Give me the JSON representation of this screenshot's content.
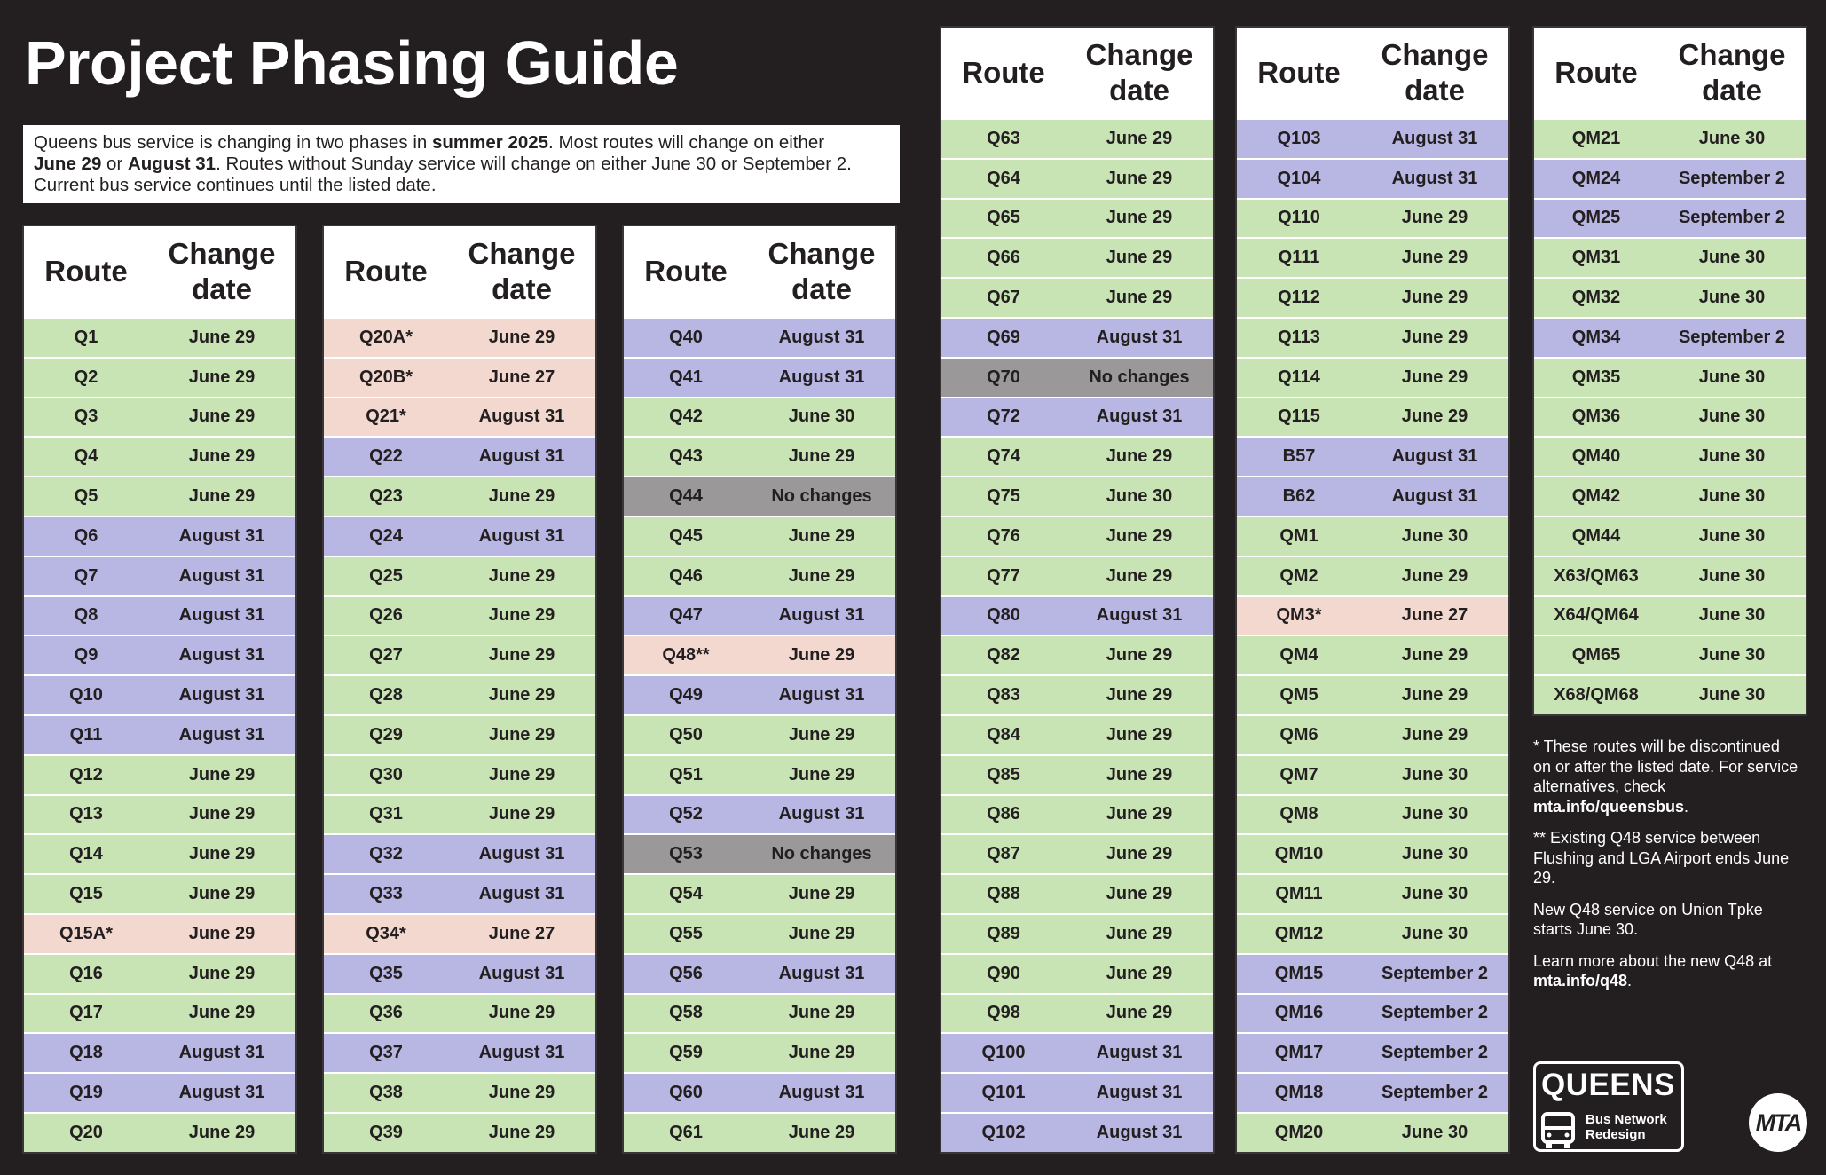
{
  "title": "Project Phasing Guide",
  "intro": {
    "t1": "Queens bus service is changing in two phases in ",
    "t2": "summer 2025",
    "t3": ". Most routes will change on either ",
    "t4": "June 29",
    "t5": " or ",
    "t6": "August 31",
    "t7": ". Routes without Sunday service will change on either June 30 or September 2. Current bus service continues until the listed date."
  },
  "headers": {
    "route": "Route",
    "change_date": "Change date"
  },
  "colors": {
    "june": "#c8e3b4",
    "august": "#b8b6e2",
    "discontinued": "#f3d8d0",
    "no_change": "#9a9899"
  },
  "tables": [
    {
      "rows": [
        {
          "route": "Q1",
          "date": "June 29",
          "status": "green"
        },
        {
          "route": "Q2",
          "date": "June 29",
          "status": "green"
        },
        {
          "route": "Q3",
          "date": "June 29",
          "status": "green"
        },
        {
          "route": "Q4",
          "date": "June 29",
          "status": "green"
        },
        {
          "route": "Q5",
          "date": "June 29",
          "status": "green"
        },
        {
          "route": "Q6",
          "date": "August 31",
          "status": "purple"
        },
        {
          "route": "Q7",
          "date": "August 31",
          "status": "purple"
        },
        {
          "route": "Q8",
          "date": "August 31",
          "status": "purple"
        },
        {
          "route": "Q9",
          "date": "August 31",
          "status": "purple"
        },
        {
          "route": "Q10",
          "date": "August 31",
          "status": "purple"
        },
        {
          "route": "Q11",
          "date": "August 31",
          "status": "purple"
        },
        {
          "route": "Q12",
          "date": "June 29",
          "status": "green"
        },
        {
          "route": "Q13",
          "date": "June 29",
          "status": "green"
        },
        {
          "route": "Q14",
          "date": "June 29",
          "status": "green"
        },
        {
          "route": "Q15",
          "date": "June 29",
          "status": "green"
        },
        {
          "route": "Q15A*",
          "date": "June 29",
          "status": "pink"
        },
        {
          "route": "Q16",
          "date": "June 29",
          "status": "green"
        },
        {
          "route": "Q17",
          "date": "June 29",
          "status": "green"
        },
        {
          "route": "Q18",
          "date": "August 31",
          "status": "purple"
        },
        {
          "route": "Q19",
          "date": "August 31",
          "status": "purple"
        },
        {
          "route": "Q20",
          "date": "June 29",
          "status": "green"
        }
      ]
    },
    {
      "rows": [
        {
          "route": "Q20A*",
          "date": "June 29",
          "status": "pink"
        },
        {
          "route": "Q20B*",
          "date": "June 27",
          "status": "pink"
        },
        {
          "route": "Q21*",
          "date": "August 31",
          "status": "pink"
        },
        {
          "route": "Q22",
          "date": "August 31",
          "status": "purple"
        },
        {
          "route": "Q23",
          "date": "June 29",
          "status": "green"
        },
        {
          "route": "Q24",
          "date": "August 31",
          "status": "purple"
        },
        {
          "route": "Q25",
          "date": "June 29",
          "status": "green"
        },
        {
          "route": "Q26",
          "date": "June 29",
          "status": "green"
        },
        {
          "route": "Q27",
          "date": "June 29",
          "status": "green"
        },
        {
          "route": "Q28",
          "date": "June 29",
          "status": "green"
        },
        {
          "route": "Q29",
          "date": "June 29",
          "status": "green"
        },
        {
          "route": "Q30",
          "date": "June 29",
          "status": "green"
        },
        {
          "route": "Q31",
          "date": "June 29",
          "status": "green"
        },
        {
          "route": "Q32",
          "date": "August 31",
          "status": "purple"
        },
        {
          "route": "Q33",
          "date": "August 31",
          "status": "purple"
        },
        {
          "route": "Q34*",
          "date": "June 27",
          "status": "pink"
        },
        {
          "route": "Q35",
          "date": "August 31",
          "status": "purple"
        },
        {
          "route": "Q36",
          "date": "June 29",
          "status": "green"
        },
        {
          "route": "Q37",
          "date": "August 31",
          "status": "purple"
        },
        {
          "route": "Q38",
          "date": "June 29",
          "status": "green"
        },
        {
          "route": "Q39",
          "date": "June 29",
          "status": "green"
        }
      ]
    },
    {
      "rows": [
        {
          "route": "Q40",
          "date": "August 31",
          "status": "purple"
        },
        {
          "route": "Q41",
          "date": "August 31",
          "status": "purple"
        },
        {
          "route": "Q42",
          "date": "June 30",
          "status": "green"
        },
        {
          "route": "Q43",
          "date": "June 29",
          "status": "green"
        },
        {
          "route": "Q44",
          "date": "No changes",
          "status": "gray"
        },
        {
          "route": "Q45",
          "date": "June 29",
          "status": "green"
        },
        {
          "route": "Q46",
          "date": "June 29",
          "status": "green"
        },
        {
          "route": "Q47",
          "date": "August 31",
          "status": "purple"
        },
        {
          "route": "Q48**",
          "date": "June 29",
          "status": "pink"
        },
        {
          "route": "Q49",
          "date": "August 31",
          "status": "purple"
        },
        {
          "route": "Q50",
          "date": "June 29",
          "status": "green"
        },
        {
          "route": "Q51",
          "date": "June 29",
          "status": "green"
        },
        {
          "route": "Q52",
          "date": "August 31",
          "status": "purple"
        },
        {
          "route": "Q53",
          "date": "No changes",
          "status": "gray"
        },
        {
          "route": "Q54",
          "date": "June 29",
          "status": "green"
        },
        {
          "route": "Q55",
          "date": "June 29",
          "status": "green"
        },
        {
          "route": "Q56",
          "date": "August 31",
          "status": "purple"
        },
        {
          "route": "Q58",
          "date": "June 29",
          "status": "green"
        },
        {
          "route": "Q59",
          "date": "June 29",
          "status": "green"
        },
        {
          "route": "Q60",
          "date": "August 31",
          "status": "purple"
        },
        {
          "route": "Q61",
          "date": "June 29",
          "status": "green"
        }
      ]
    },
    {
      "rows": [
        {
          "route": "Q63",
          "date": "June 29",
          "status": "green"
        },
        {
          "route": "Q64",
          "date": "June 29",
          "status": "green"
        },
        {
          "route": "Q65",
          "date": "June 29",
          "status": "green"
        },
        {
          "route": "Q66",
          "date": "June 29",
          "status": "green"
        },
        {
          "route": "Q67",
          "date": "June 29",
          "status": "green"
        },
        {
          "route": "Q69",
          "date": "August 31",
          "status": "purple"
        },
        {
          "route": "Q70",
          "date": "No changes",
          "status": "gray"
        },
        {
          "route": "Q72",
          "date": "August 31",
          "status": "purple"
        },
        {
          "route": "Q74",
          "date": "June 29",
          "status": "green"
        },
        {
          "route": "Q75",
          "date": "June 30",
          "status": "green"
        },
        {
          "route": "Q76",
          "date": "June 29",
          "status": "green"
        },
        {
          "route": "Q77",
          "date": "June 29",
          "status": "green"
        },
        {
          "route": "Q80",
          "date": "August 31",
          "status": "purple"
        },
        {
          "route": "Q82",
          "date": "June 29",
          "status": "green"
        },
        {
          "route": "Q83",
          "date": "June 29",
          "status": "green"
        },
        {
          "route": "Q84",
          "date": "June 29",
          "status": "green"
        },
        {
          "route": "Q85",
          "date": "June 29",
          "status": "green"
        },
        {
          "route": "Q86",
          "date": "June 29",
          "status": "green"
        },
        {
          "route": "Q87",
          "date": "June 29",
          "status": "green"
        },
        {
          "route": "Q88",
          "date": "June 29",
          "status": "green"
        },
        {
          "route": "Q89",
          "date": "June 29",
          "status": "green"
        },
        {
          "route": "Q90",
          "date": "June 29",
          "status": "green"
        },
        {
          "route": "Q98",
          "date": "June 29",
          "status": "green"
        },
        {
          "route": "Q100",
          "date": "August 31",
          "status": "purple"
        },
        {
          "route": "Q101",
          "date": "August 31",
          "status": "purple"
        },
        {
          "route": "Q102",
          "date": "August 31",
          "status": "purple"
        }
      ]
    },
    {
      "rows": [
        {
          "route": "Q103",
          "date": "August 31",
          "status": "purple"
        },
        {
          "route": "Q104",
          "date": "August 31",
          "status": "purple"
        },
        {
          "route": "Q110",
          "date": "June 29",
          "status": "green"
        },
        {
          "route": "Q111",
          "date": "June 29",
          "status": "green"
        },
        {
          "route": "Q112",
          "date": "June 29",
          "status": "green"
        },
        {
          "route": "Q113",
          "date": "June 29",
          "status": "green"
        },
        {
          "route": "Q114",
          "date": "June 29",
          "status": "green"
        },
        {
          "route": "Q115",
          "date": "June 29",
          "status": "green"
        },
        {
          "route": "B57",
          "date": "August 31",
          "status": "purple"
        },
        {
          "route": "B62",
          "date": "August 31",
          "status": "purple"
        },
        {
          "route": "QM1",
          "date": "June 30",
          "status": "green"
        },
        {
          "route": "QM2",
          "date": "June 29",
          "status": "green"
        },
        {
          "route": "QM3*",
          "date": "June 27",
          "status": "pink"
        },
        {
          "route": "QM4",
          "date": "June 29",
          "status": "green"
        },
        {
          "route": "QM5",
          "date": "June 29",
          "status": "green"
        },
        {
          "route": "QM6",
          "date": "June 29",
          "status": "green"
        },
        {
          "route": "QM7",
          "date": "June 30",
          "status": "green"
        },
        {
          "route": "QM8",
          "date": "June 30",
          "status": "green"
        },
        {
          "route": "QM10",
          "date": "June 30",
          "status": "green"
        },
        {
          "route": "QM11",
          "date": "June 30",
          "status": "green"
        },
        {
          "route": "QM12",
          "date": "June 30",
          "status": "green"
        },
        {
          "route": "QM15",
          "date": "September 2",
          "status": "purple"
        },
        {
          "route": "QM16",
          "date": "September 2",
          "status": "purple"
        },
        {
          "route": "QM17",
          "date": "September 2",
          "status": "purple"
        },
        {
          "route": "QM18",
          "date": "September 2",
          "status": "purple"
        },
        {
          "route": "QM20",
          "date": "June 30",
          "status": "green"
        }
      ]
    },
    {
      "rows": [
        {
          "route": "QM21",
          "date": "June 30",
          "status": "green"
        },
        {
          "route": "QM24",
          "date": "September 2",
          "status": "purple"
        },
        {
          "route": "QM25",
          "date": "September 2",
          "status": "purple"
        },
        {
          "route": "QM31",
          "date": "June 30",
          "status": "green"
        },
        {
          "route": "QM32",
          "date": "June 30",
          "status": "green"
        },
        {
          "route": "QM34",
          "date": "September 2",
          "status": "purple"
        },
        {
          "route": "QM35",
          "date": "June 30",
          "status": "green"
        },
        {
          "route": "QM36",
          "date": "June 30",
          "status": "green"
        },
        {
          "route": "QM40",
          "date": "June 30",
          "status": "green"
        },
        {
          "route": "QM42",
          "date": "June 30",
          "status": "green"
        },
        {
          "route": "QM44",
          "date": "June 30",
          "status": "green"
        },
        {
          "route": "X63/QM63",
          "date": "June 30",
          "status": "green"
        },
        {
          "route": "X64/QM64",
          "date": "June 30",
          "status": "green"
        },
        {
          "route": "QM65",
          "date": "June 30",
          "status": "green"
        },
        {
          "route": "X68/QM68",
          "date": "June 30",
          "status": "green"
        }
      ]
    }
  ],
  "notes": {
    "n1a": "* These routes will be discontinued on or after the listed date. For service alternatives, check ",
    "n1b": "mta.info/queensbus",
    "n1c": ".",
    "n2": "** Existing Q48 service between Flushing and LGA Airport ends June 29.",
    "n3": "New Q48 service on Union Tpke starts June 30.",
    "n4a": "Learn more about the new Q48 at ",
    "n4b": "mta.info/q48",
    "n4c": "."
  },
  "logo": {
    "name": "QUEENS",
    "line1": "Bus Network",
    "line2": "Redesign"
  },
  "mta": "MTA"
}
